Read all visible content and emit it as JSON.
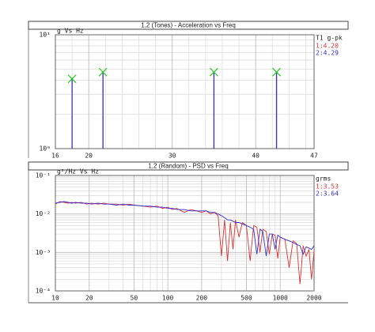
{
  "chart_data": [
    {
      "type": "stem",
      "title": "1,2 (Tones) - Acceleration vs Freq",
      "y_label": "g Vs Hz",
      "x_scale": "linear",
      "y_scale": "log",
      "xlim": [
        16,
        47
      ],
      "ylim": [
        1,
        10
      ],
      "xticks": [
        16,
        20,
        30,
        40,
        47
      ],
      "yticks": [
        {
          "value": 1,
          "label": "10⁰"
        },
        {
          "value": 10,
          "label": "10¹"
        }
      ],
      "grid": true,
      "x_minor_grid_step": 2,
      "legend_position": "right",
      "legend_title": "T1 g-pk",
      "marker_color": "#22cc22",
      "x": [
        18,
        21.7,
        35,
        42.5
      ],
      "series": [
        {
          "name": "1:4.20",
          "color": "#e03030",
          "values": [
            4.1,
            4.7,
            4.7,
            4.7
          ]
        },
        {
          "name": "2:4.29",
          "color": "#3030d0",
          "values": [
            4.1,
            4.7,
            4.7,
            4.7
          ]
        }
      ]
    },
    {
      "type": "line",
      "title": "1,2 (Random) - PSD vs Freq",
      "y_label": "g²/Hz Vs Hz",
      "x_scale": "log",
      "y_scale": "log",
      "xlim": [
        10,
        2000
      ],
      "ylim": [
        0.0001,
        0.1
      ],
      "xticks": [
        10,
        20,
        50,
        100,
        200,
        500,
        1000,
        2000
      ],
      "yticks": [
        {
          "value": 0.0001,
          "label": "10⁻⁴"
        },
        {
          "value": 0.001,
          "label": "10⁻³"
        },
        {
          "value": 0.01,
          "label": "10⁻²"
        },
        {
          "value": 0.1,
          "label": "10⁻¹"
        }
      ],
      "grid": true,
      "legend_position": "right",
      "legend_title": "grms",
      "x": [
        10,
        11,
        12,
        13,
        14,
        15,
        17,
        19,
        21,
        24,
        27,
        30,
        35,
        40,
        45,
        50,
        60,
        70,
        80,
        90,
        100,
        110,
        120,
        140,
        160,
        180,
        200,
        220,
        240,
        260,
        280,
        300,
        320,
        340,
        360,
        380,
        400,
        430,
        460,
        500,
        540,
        580,
        620,
        660,
        700,
        750,
        800,
        850,
        900,
        950,
        1000,
        1100,
        1200,
        1300,
        1400,
        1500,
        1600,
        1700,
        1800,
        1900,
        2000
      ],
      "series": [
        {
          "name": "1:3.53",
          "color": "#e03030",
          "values": [
            0.018,
            0.021,
            0.02,
            0.019,
            0.02,
            0.019,
            0.02,
            0.018,
            0.019,
            0.018,
            0.019,
            0.018,
            0.018,
            0.017,
            0.018,
            0.017,
            0.016,
            0.015,
            0.016,
            0.014,
            0.015,
            0.013,
            0.014,
            0.011,
            0.013,
            0.012,
            0.011,
            0.012,
            0.01,
            0.011,
            0.009,
            0.0008,
            0.007,
            0.0006,
            0.006,
            0.0012,
            0.007,
            0.0025,
            0.006,
            0.005,
            0.0006,
            0.005,
            0.0045,
            0.001,
            0.004,
            0.0035,
            0.0009,
            0.003,
            0.0028,
            0.0007,
            0.0025,
            0.0022,
            0.0004,
            0.002,
            0.0017,
            0.00015,
            0.0015,
            0.0008,
            0.0012,
            0.0002,
            0.0011
          ]
        },
        {
          "name": "2:3.64",
          "color": "#3030d0",
          "values": [
            0.019,
            0.02,
            0.021,
            0.02,
            0.019,
            0.02,
            0.019,
            0.019,
            0.018,
            0.019,
            0.018,
            0.018,
            0.017,
            0.018,
            0.017,
            0.017,
            0.016,
            0.016,
            0.015,
            0.015,
            0.014,
            0.014,
            0.013,
            0.013,
            0.012,
            0.012,
            0.012,
            0.012,
            0.011,
            0.011,
            0.01,
            0.009,
            0.008,
            0.007,
            0.007,
            0.0065,
            0.006,
            0.006,
            0.0055,
            0.005,
            0.0045,
            0.004,
            0.0009,
            0.004,
            0.0035,
            0.0008,
            0.003,
            0.003,
            0.0012,
            0.0028,
            0.0025,
            0.0022,
            0.002,
            0.0018,
            0.0016,
            0.0015,
            0.0009,
            0.0014,
            0.0013,
            0.0012,
            0.0015
          ]
        }
      ]
    }
  ]
}
